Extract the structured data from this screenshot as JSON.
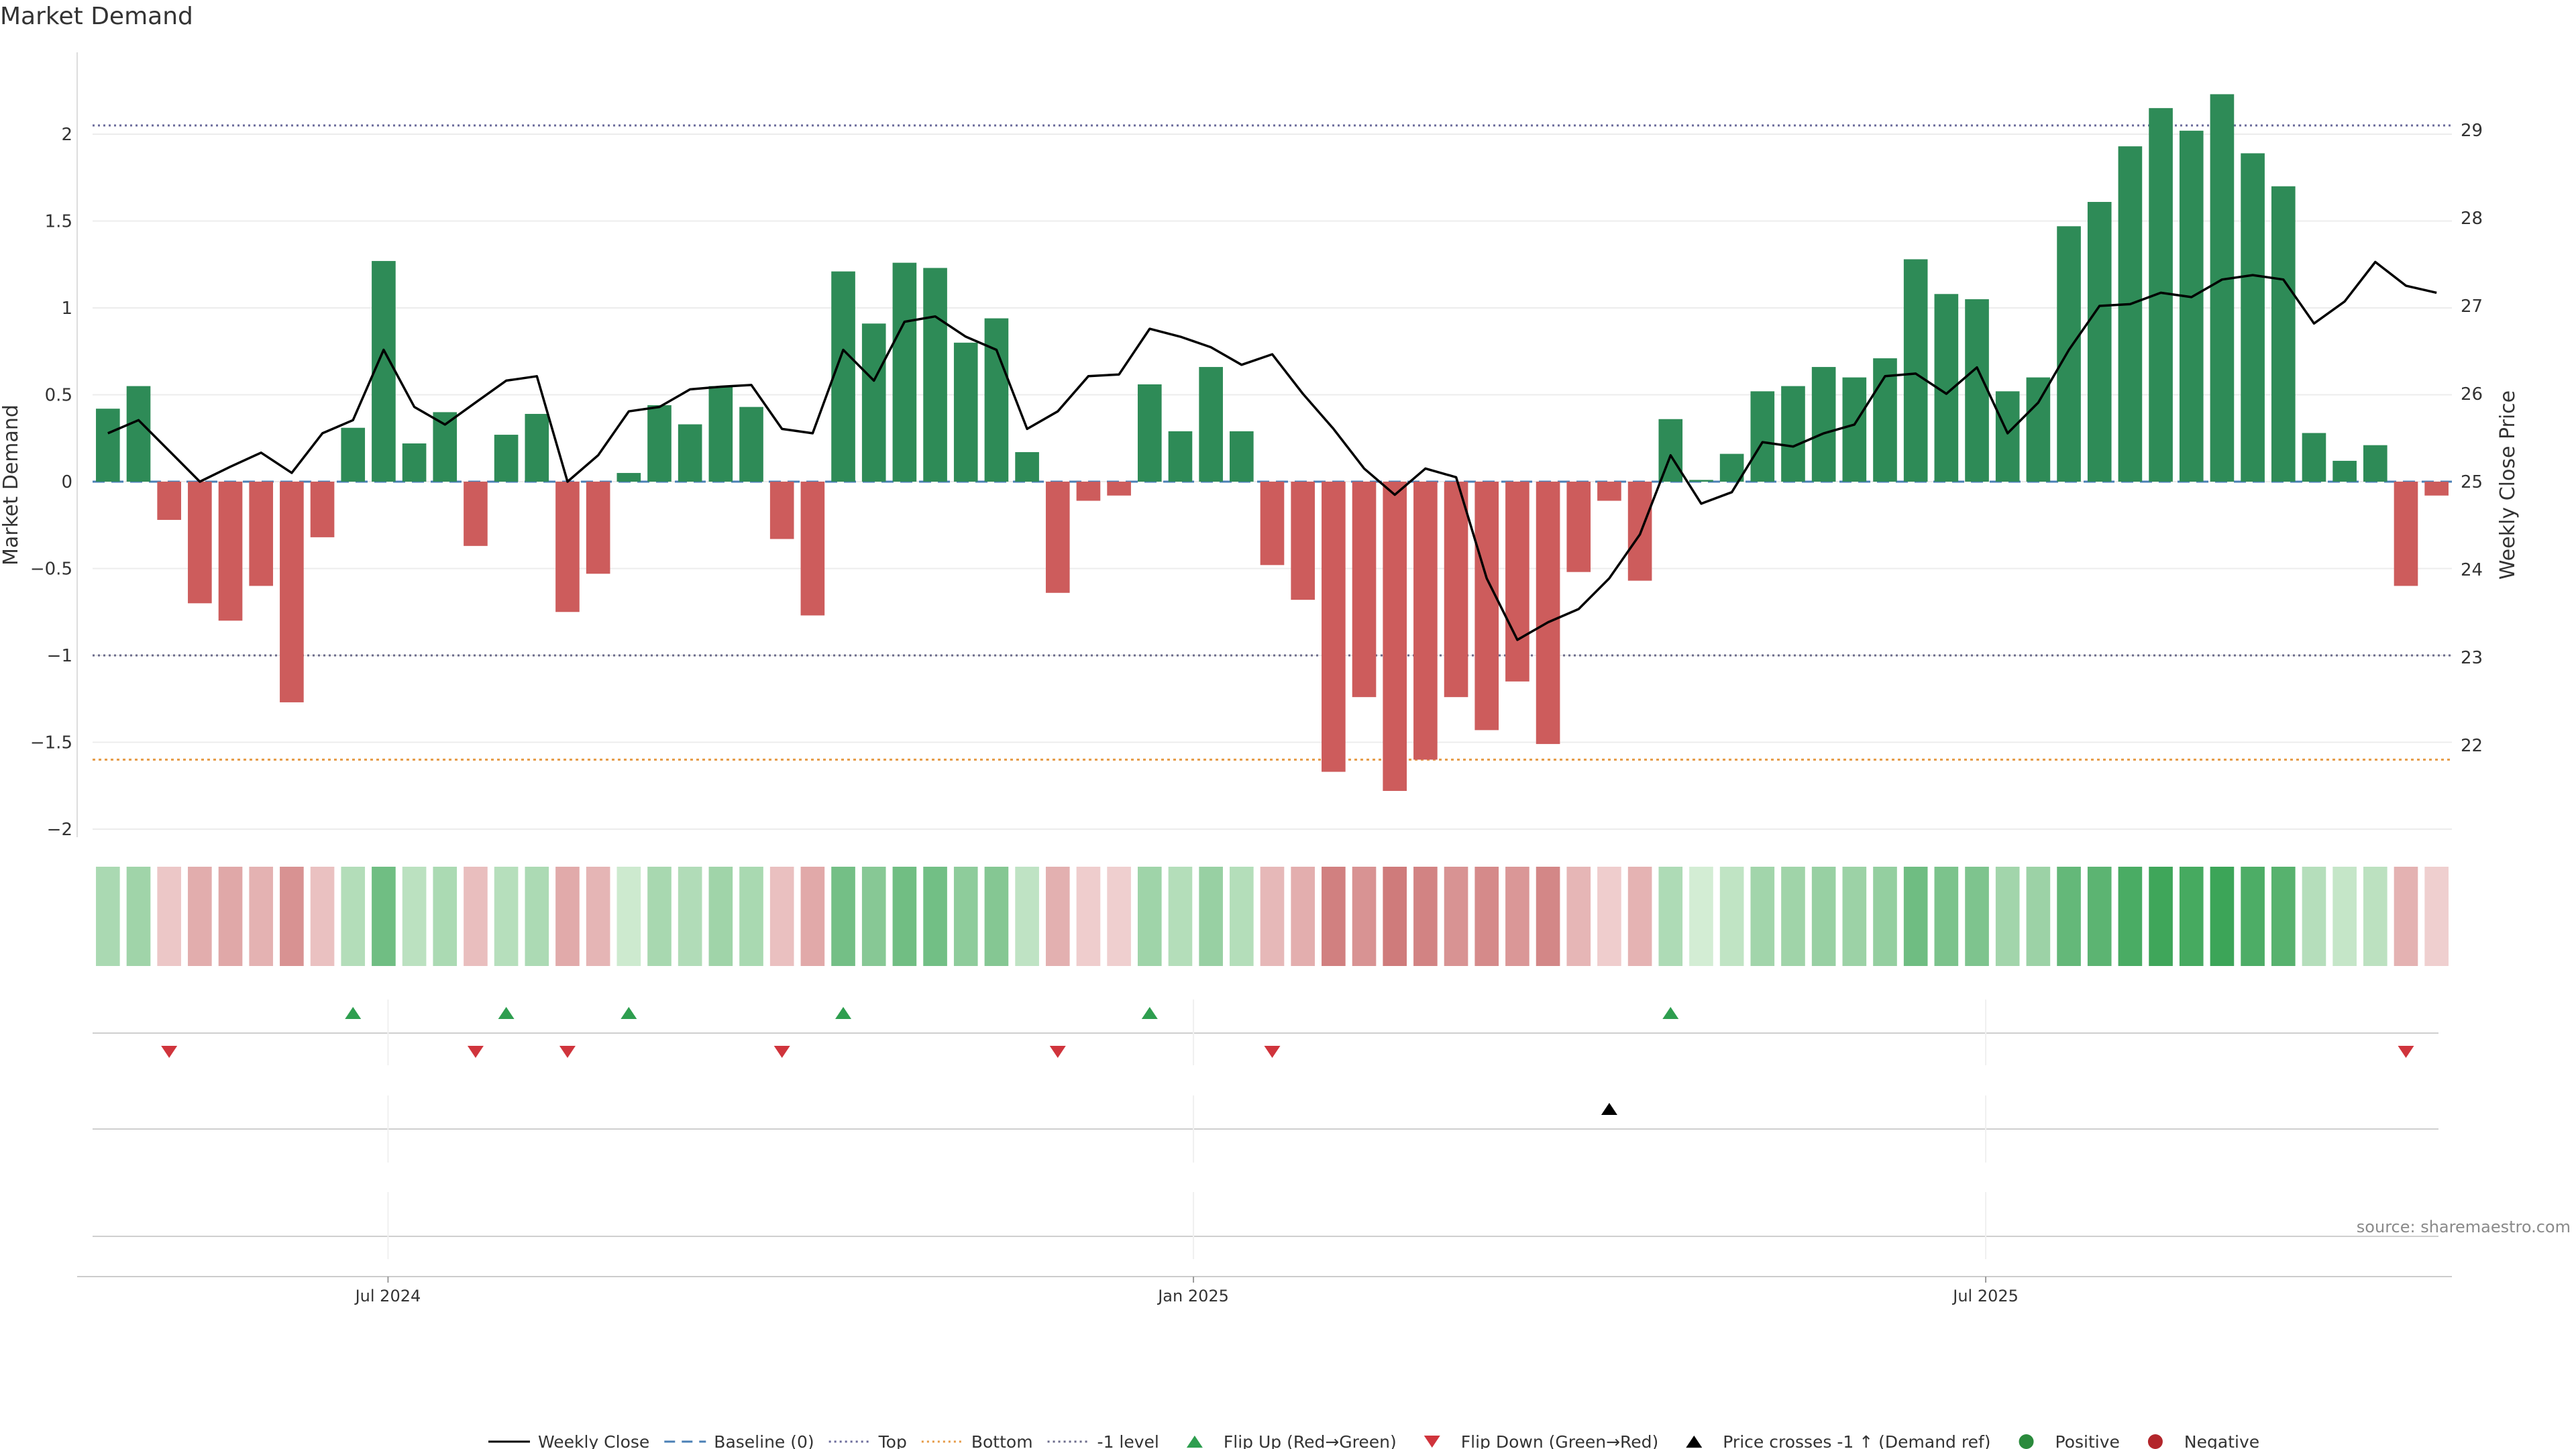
{
  "chart_data": {
    "type": "bar",
    "title": "Market Demand",
    "ylabel": "Market Demand",
    "y2label": "Weekly Close Price",
    "ylim": [
      -2.3,
      2.45
    ],
    "y2lim": [
      21.1,
      29.7
    ],
    "yticks": [
      -2,
      -1.5,
      -1,
      -0.5,
      0,
      0.5,
      1,
      1.5,
      2
    ],
    "ytick_labels": [
      "−2",
      "−1.5",
      "−1",
      "−0.5",
      "0",
      "0.5",
      "1",
      "1.5",
      "2"
    ],
    "y2ticks": [
      22,
      23,
      24,
      25,
      26,
      27,
      28,
      29
    ],
    "y2tick_labels": [
      "22",
      "23",
      "24",
      "25",
      "26",
      "27",
      "28",
      "29"
    ],
    "x_start": "2024-04-28",
    "week_days": 7,
    "xticks": [
      {
        "label": "Jul 2024",
        "date": "2024-07-01"
      },
      {
        "label": "Jan 2025",
        "date": "2025-01-01"
      },
      {
        "label": "Jul 2025",
        "date": "2025-07-01"
      }
    ],
    "reference_lines": {
      "top": 2.05,
      "bottom": -1.6,
      "minus_one": -1,
      "baseline": 0
    },
    "series": [
      {
        "name": "Market Demand",
        "values": [
          0.42,
          0.55,
          -0.22,
          -0.7,
          -0.8,
          -0.6,
          -1.27,
          -0.32,
          0.31,
          1.27,
          0.22,
          0.4,
          -0.37,
          0.27,
          0.39,
          -0.75,
          -0.53,
          0.05,
          0.44,
          0.33,
          0.55,
          0.43,
          -0.33,
          -0.77,
          1.21,
          0.91,
          1.26,
          1.23,
          0.8,
          0.94,
          0.17,
          -0.64,
          -0.11,
          -0.08,
          0.56,
          0.29,
          0.66,
          0.29,
          -0.48,
          -0.68,
          -1.67,
          -1.24,
          -1.78,
          -1.6,
          -1.24,
          -1.43,
          -1.15,
          -1.51,
          -0.52,
          -0.11,
          -0.57,
          0.36,
          0.01,
          0.16,
          0.52,
          0.55,
          0.66,
          0.6,
          0.71,
          1.28,
          1.08,
          1.05,
          0.52,
          0.6,
          1.47,
          1.61,
          1.93,
          2.15,
          2.02,
          2.23,
          1.89,
          1.7,
          0.28,
          0.12,
          0.21,
          -0.6,
          -0.08
        ]
      },
      {
        "name": "Weekly Close",
        "values": [
          25.55,
          25.7,
          25.35,
          25.0,
          25.17,
          25.33,
          25.1,
          25.55,
          25.7,
          26.5,
          25.85,
          25.65,
          25.9,
          26.15,
          26.2,
          25.0,
          25.3,
          25.8,
          25.85,
          26.05,
          26.08,
          26.1,
          25.6,
          25.55,
          26.5,
          26.15,
          26.82,
          26.88,
          26.65,
          26.5,
          25.6,
          25.8,
          26.2,
          26.22,
          26.74,
          26.65,
          26.53,
          26.33,
          26.45,
          26.0,
          25.6,
          25.15,
          24.85,
          25.15,
          25.05,
          23.9,
          23.2,
          23.4,
          23.55,
          23.9,
          24.4,
          25.3,
          24.75,
          24.88,
          25.45,
          25.4,
          25.55,
          25.65,
          26.2,
          26.23,
          26.0,
          26.3,
          25.55,
          25.9,
          26.5,
          27.0,
          27.02,
          27.15,
          27.1,
          27.3,
          27.35,
          27.3,
          26.8,
          27.05,
          27.5,
          27.23,
          27.15
        ]
      }
    ],
    "flip_up_indices": [
      8,
      13,
      17,
      24,
      34,
      51
    ],
    "flip_down_indices": [
      2,
      12,
      15,
      22,
      31,
      38,
      75
    ],
    "price_cross_indices": [
      49
    ],
    "legend_position": "bottom-center",
    "legend": [
      {
        "label": "Weekly Close",
        "kind": "solid-line",
        "color": "#000000"
      },
      {
        "label": "Baseline (0)",
        "kind": "dashed-line",
        "color": "#4a7fb5"
      },
      {
        "label": "Top",
        "kind": "dotted-line",
        "color": "#6a6a9a"
      },
      {
        "label": "Bottom",
        "kind": "dotted-line",
        "color": "#e69a45"
      },
      {
        "label": "-1 level",
        "kind": "dotted-line",
        "color": "#6a6a8a"
      },
      {
        "label": "Flip Up (Red→Green)",
        "kind": "triangle-up",
        "color": "#2e9e4f"
      },
      {
        "label": "Flip Down (Green→Red)",
        "kind": "triangle-down",
        "color": "#d0343c"
      },
      {
        "label": "Price crosses -1 ↑ (Demand ref)",
        "kind": "triangle-up",
        "color": "#000000"
      },
      {
        "label": "Positive",
        "kind": "circle",
        "color": "#2a8a3c"
      },
      {
        "label": "Negative",
        "kind": "circle",
        "color": "#b3262b"
      }
    ],
    "colors": {
      "positive": "#2e8b57",
      "negative": "#cd5c5c",
      "line": "#000000"
    }
  },
  "source": "source: sharemaestro.com"
}
